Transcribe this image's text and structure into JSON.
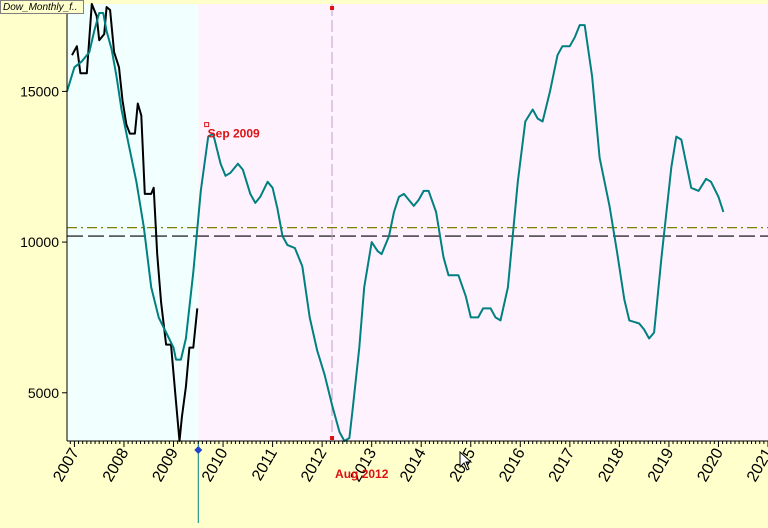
{
  "tab_title": "Dow_Monthly_f..",
  "colors": {
    "background": "#ffffcc",
    "history_shade": "#f2ffff",
    "forecast_shade": "#fff2ff",
    "dow_line": "#000000",
    "model_line": "#008080",
    "annotation": "#dd1111",
    "hline_dash": "#000000",
    "hline_dashdot": "#808000"
  },
  "chart_data": {
    "type": "line",
    "title": "",
    "xlabel": "",
    "ylabel": "",
    "xlim": [
      2006.85,
      2021.0
    ],
    "ylim": [
      3400,
      17900
    ],
    "x_tick_labels": [
      "2007",
      "2008",
      "2009",
      "2010",
      "2011",
      "2012",
      "2013",
      "2014",
      "2015",
      "2016",
      "2017",
      "2018",
      "2019",
      "2020",
      "2021"
    ],
    "y_tick_labels": [
      "5000",
      "10000",
      "15000"
    ],
    "y_ticks": [
      5000,
      10000,
      15000
    ],
    "shaded_regions": [
      {
        "from": 2006.85,
        "to": 2009.5,
        "color_key": "history_shade"
      },
      {
        "from": 2009.5,
        "to": 2021.0,
        "color_key": "forecast_shade"
      }
    ],
    "hlines": [
      {
        "y": 10200,
        "style": "dash",
        "color_key": "hline_dash"
      },
      {
        "y": 10480,
        "style": "dashdot",
        "color_key": "hline_dashdot"
      }
    ],
    "vlines": [
      {
        "x": 2012.2,
        "style": "dashed"
      },
      {
        "x": 2009.5,
        "style": "solid-marker"
      }
    ],
    "annotations": [
      {
        "text": "Sep 2009",
        "x": 2009.75,
        "y": 13600
      },
      {
        "text": "Aug 2012",
        "x": 2012.2,
        "y": 3400
      }
    ],
    "series": [
      {
        "color_key": "dow_line",
        "points": [
          [
            2006.95,
            16200
          ],
          [
            2007.05,
            16500
          ],
          [
            2007.12,
            15600
          ],
          [
            2007.25,
            15600
          ],
          [
            2007.35,
            17900
          ],
          [
            2007.45,
            17500
          ],
          [
            2007.5,
            16700
          ],
          [
            2007.6,
            16900
          ],
          [
            2007.65,
            17800
          ],
          [
            2007.72,
            17700
          ],
          [
            2007.8,
            16300
          ],
          [
            2007.9,
            15800
          ],
          [
            2007.97,
            14700
          ],
          [
            2008.05,
            13900
          ],
          [
            2008.12,
            13600
          ],
          [
            2008.22,
            13600
          ],
          [
            2008.28,
            14600
          ],
          [
            2008.35,
            14200
          ],
          [
            2008.42,
            11600
          ],
          [
            2008.55,
            11600
          ],
          [
            2008.6,
            11800
          ],
          [
            2008.67,
            9600
          ],
          [
            2008.75,
            8000
          ],
          [
            2008.85,
            6600
          ],
          [
            2008.95,
            6600
          ],
          [
            2009.05,
            4700
          ],
          [
            2009.12,
            3400
          ],
          [
            2009.17,
            4200
          ],
          [
            2009.25,
            5200
          ],
          [
            2009.32,
            6500
          ],
          [
            2009.4,
            6500
          ],
          [
            2009.48,
            7800
          ]
        ]
      },
      {
        "color_key": "model_line",
        "points": [
          [
            2006.85,
            15000
          ],
          [
            2007.0,
            15800
          ],
          [
            2007.15,
            16000
          ],
          [
            2007.3,
            16300
          ],
          [
            2007.4,
            17000
          ],
          [
            2007.5,
            17600
          ],
          [
            2007.58,
            17600
          ],
          [
            2007.65,
            17000
          ],
          [
            2007.75,
            16400
          ],
          [
            2007.85,
            15500
          ],
          [
            2007.95,
            14400
          ],
          [
            2008.1,
            13200
          ],
          [
            2008.25,
            12000
          ],
          [
            2008.4,
            10500
          ],
          [
            2008.55,
            8500
          ],
          [
            2008.7,
            7500
          ],
          [
            2008.85,
            7000
          ],
          [
            2009.0,
            6500
          ],
          [
            2009.05,
            6100
          ],
          [
            2009.15,
            6100
          ],
          [
            2009.25,
            6800
          ],
          [
            2009.4,
            9000
          ],
          [
            2009.55,
            11700
          ],
          [
            2009.7,
            13500
          ],
          [
            2009.8,
            13600
          ],
          [
            2009.95,
            12600
          ],
          [
            2010.05,
            12200
          ],
          [
            2010.15,
            12300
          ],
          [
            2010.3,
            12600
          ],
          [
            2010.4,
            12400
          ],
          [
            2010.55,
            11600
          ],
          [
            2010.65,
            11300
          ],
          [
            2010.75,
            11500
          ],
          [
            2010.9,
            12000
          ],
          [
            2011.0,
            11800
          ],
          [
            2011.1,
            11100
          ],
          [
            2011.2,
            10200
          ],
          [
            2011.3,
            9900
          ],
          [
            2011.45,
            9800
          ],
          [
            2011.6,
            9200
          ],
          [
            2011.75,
            7500
          ],
          [
            2011.9,
            6400
          ],
          [
            2012.05,
            5600
          ],
          [
            2012.2,
            4600
          ],
          [
            2012.35,
            3700
          ],
          [
            2012.45,
            3400
          ],
          [
            2012.55,
            3500
          ],
          [
            2012.62,
            4500
          ],
          [
            2012.75,
            6500
          ],
          [
            2012.85,
            8500
          ],
          [
            2013.0,
            10000
          ],
          [
            2013.12,
            9700
          ],
          [
            2013.2,
            9600
          ],
          [
            2013.35,
            10200
          ],
          [
            2013.45,
            11000
          ],
          [
            2013.55,
            11500
          ],
          [
            2013.65,
            11600
          ],
          [
            2013.75,
            11400
          ],
          [
            2013.85,
            11200
          ],
          [
            2013.95,
            11400
          ],
          [
            2014.05,
            11700
          ],
          [
            2014.15,
            11700
          ],
          [
            2014.3,
            11000
          ],
          [
            2014.45,
            9500
          ],
          [
            2014.55,
            8900
          ],
          [
            2014.75,
            8900
          ],
          [
            2014.9,
            8200
          ],
          [
            2015.0,
            7500
          ],
          [
            2015.15,
            7500
          ],
          [
            2015.25,
            7800
          ],
          [
            2015.4,
            7800
          ],
          [
            2015.5,
            7500
          ],
          [
            2015.6,
            7400
          ],
          [
            2015.75,
            8500
          ],
          [
            2015.95,
            12000
          ],
          [
            2016.1,
            14000
          ],
          [
            2016.25,
            14400
          ],
          [
            2016.35,
            14100
          ],
          [
            2016.45,
            14000
          ],
          [
            2016.6,
            15000
          ],
          [
            2016.75,
            16200
          ],
          [
            2016.85,
            16500
          ],
          [
            2017.0,
            16500
          ],
          [
            2017.1,
            16800
          ],
          [
            2017.2,
            17200
          ],
          [
            2017.3,
            17200
          ],
          [
            2017.45,
            15500
          ],
          [
            2017.6,
            12800
          ],
          [
            2017.8,
            11200
          ],
          [
            2017.95,
            9700
          ],
          [
            2018.1,
            8100
          ],
          [
            2018.2,
            7400
          ],
          [
            2018.4,
            7300
          ],
          [
            2018.5,
            7100
          ],
          [
            2018.6,
            6800
          ],
          [
            2018.7,
            7000
          ],
          [
            2018.85,
            9500
          ],
          [
            2019.05,
            12500
          ],
          [
            2019.15,
            13500
          ],
          [
            2019.25,
            13400
          ],
          [
            2019.45,
            11800
          ],
          [
            2019.6,
            11700
          ],
          [
            2019.75,
            12100
          ],
          [
            2019.85,
            12000
          ],
          [
            2020.0,
            11500
          ],
          [
            2020.1,
            11000
          ]
        ]
      }
    ]
  }
}
